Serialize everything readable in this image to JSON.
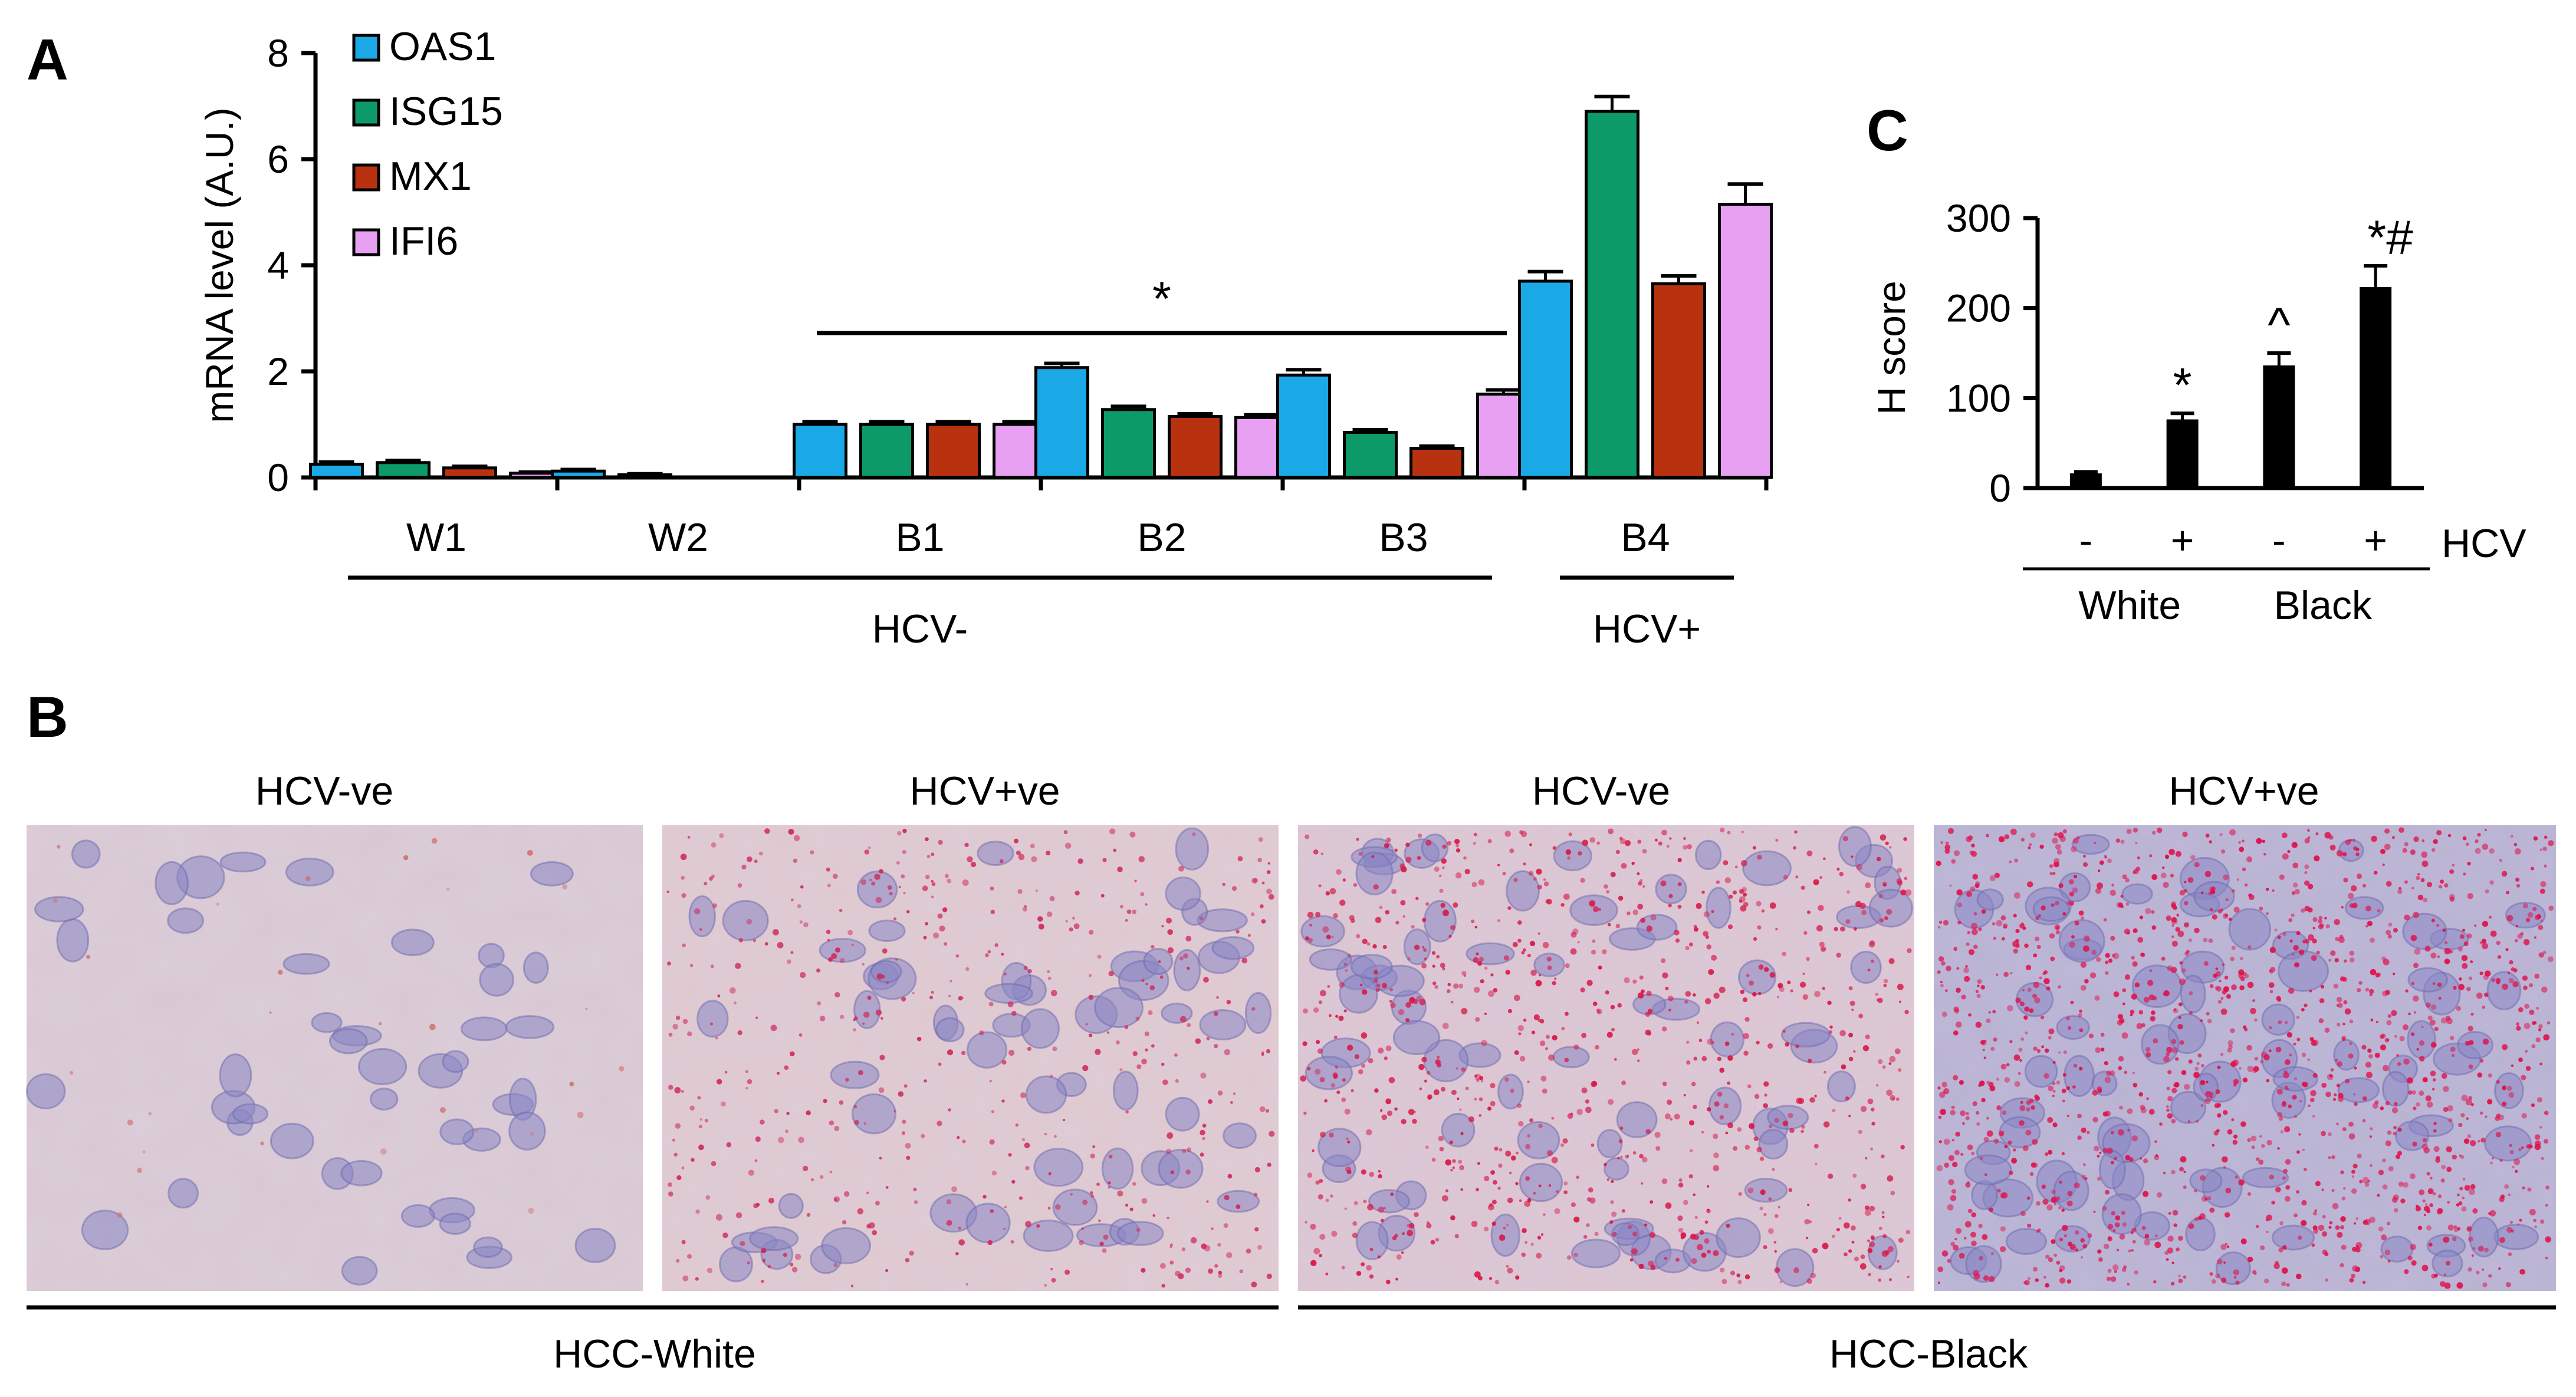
{
  "panels": {
    "A": "A",
    "B": "B",
    "C": "C"
  },
  "chart_data": [
    {
      "id": "A",
      "type": "bar",
      "ylabel": "mRNA level (A.U.)",
      "xlabel": "",
      "ylim": [
        0,
        8
      ],
      "yticks": [
        "0",
        "2",
        "4",
        "6",
        "8"
      ],
      "categories": [
        "W1",
        "W2",
        "B1",
        "B2",
        "B3",
        "B4"
      ],
      "series": [
        {
          "name": "OAS1",
          "color": "#1aa9e6",
          "values": [
            0.25,
            0.12,
            1.0,
            2.07,
            1.93,
            3.7
          ],
          "errors": [
            0.04,
            0.03,
            0.05,
            0.08,
            0.1,
            0.18
          ]
        },
        {
          "name": "ISG15",
          "color": "#0b9a68",
          "values": [
            0.28,
            0.05,
            1.0,
            1.28,
            0.85,
            6.9
          ],
          "errors": [
            0.04,
            0.02,
            0.05,
            0.06,
            0.05,
            0.28
          ]
        },
        {
          "name": "MX1",
          "color": "#b83210",
          "values": [
            0.18,
            0.0,
            1.0,
            1.15,
            0.55,
            3.65
          ],
          "errors": [
            0.03,
            0.0,
            0.05,
            0.05,
            0.04,
            0.15
          ]
        },
        {
          "name": "IFI6",
          "color": "#e7a0f2",
          "values": [
            0.08,
            0.0,
            1.0,
            1.13,
            1.57,
            5.15
          ],
          "errors": [
            0.02,
            0.0,
            0.05,
            0.05,
            0.08,
            0.38
          ]
        }
      ],
      "groups": [
        {
          "label": "HCV-",
          "from": 0,
          "to": 4
        },
        {
          "label": "HCV+",
          "from": 5,
          "to": 5
        }
      ],
      "annotations": [
        {
          "text": "*",
          "from": 2,
          "to": 4
        }
      ],
      "legend": "top-left"
    },
    {
      "id": "C",
      "type": "bar",
      "ylabel": "H score",
      "xlabel": "",
      "ylim": [
        0,
        300
      ],
      "yticks": [
        "0",
        "100",
        "200",
        "300"
      ],
      "x_variable": "HCV",
      "categories": [
        "-",
        "+",
        "-",
        "+"
      ],
      "values": [
        15,
        75,
        135,
        222
      ],
      "errors": [
        3,
        8,
        15,
        25
      ],
      "marks": [
        "",
        "*",
        "^",
        "*#"
      ],
      "groups": [
        {
          "label": "White",
          "from": 0,
          "to": 1
        },
        {
          "label": "Black",
          "from": 2,
          "to": 3
        }
      ],
      "color": "#000000"
    }
  ],
  "images": {
    "titles": [
      "HCV-ve",
      "HCV+ve",
      "HCV-ve",
      "HCV+ve"
    ],
    "groups": [
      "HCC-White",
      "HCC-Black"
    ]
  }
}
